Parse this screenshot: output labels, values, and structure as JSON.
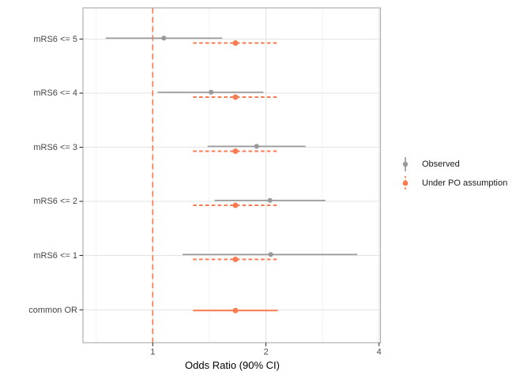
{
  "theme": {
    "background": "#FFFFFF",
    "grid_major": "#E3E3E3",
    "grid_minor": "#F0F0F0",
    "panel_border": "#A8A8A8",
    "tick_mark": "#333333",
    "tick_label_color": "#4D4D4D",
    "axis_title_color": "#000000",
    "legend_text_color": "#1A1A1A"
  },
  "chart_data": {
    "type": "forest-pointrange",
    "title": "",
    "xlabel": "Odds Ratio (90% CI)",
    "ylabel": "",
    "x_scale": "log2",
    "xlim": [
      0.65,
      4.05
    ],
    "x_ticks": [
      1,
      2,
      4
    ],
    "x_tick_labels": [
      "1",
      "2",
      "4"
    ],
    "x_minor_ticks": [
      0.7071,
      1.4142,
      2.8284
    ],
    "grid": true,
    "ci_level": "90%",
    "categories": [
      "mRS6 <= 5",
      "mRS6 <= 4",
      "mRS6 <= 3",
      "mRS6 <= 2",
      "mRS6 <= 1",
      "common OR"
    ],
    "reference_line": {
      "x": 1.0,
      "color": "#F87B51",
      "style": "dashed"
    },
    "series": [
      {
        "name": "Observed",
        "color": "#999999",
        "line_style": "solid",
        "values": [
          {
            "category": "mRS6 <= 5",
            "or": 1.07,
            "ci_low": 0.75,
            "ci_high": 1.53,
            "line": "solid"
          },
          {
            "category": "mRS6 <= 4",
            "or": 1.43,
            "ci_low": 1.03,
            "ci_high": 1.97,
            "line": "solid"
          },
          {
            "category": "mRS6 <= 3",
            "or": 1.89,
            "ci_low": 1.4,
            "ci_high": 2.55,
            "line": "solid"
          },
          {
            "category": "mRS6 <= 2",
            "or": 2.05,
            "ci_low": 1.46,
            "ci_high": 2.88,
            "line": "solid"
          },
          {
            "category": "mRS6 <= 1",
            "or": 2.06,
            "ci_low": 1.2,
            "ci_high": 3.5,
            "line": "solid"
          }
        ]
      },
      {
        "name": "Under PO assumption",
        "color": "#F87B51",
        "line_style": "dashed",
        "values": [
          {
            "category": "mRS6 <= 5",
            "or": 1.66,
            "ci_low": 1.28,
            "ci_high": 2.15,
            "line": "dashed"
          },
          {
            "category": "mRS6 <= 4",
            "or": 1.66,
            "ci_low": 1.28,
            "ci_high": 2.15,
            "line": "dashed"
          },
          {
            "category": "mRS6 <= 3",
            "or": 1.66,
            "ci_low": 1.28,
            "ci_high": 2.15,
            "line": "dashed"
          },
          {
            "category": "mRS6 <= 2",
            "or": 1.66,
            "ci_low": 1.28,
            "ci_high": 2.15,
            "line": "dashed"
          },
          {
            "category": "mRS6 <= 1",
            "or": 1.66,
            "ci_low": 1.28,
            "ci_high": 2.15,
            "line": "dashed"
          },
          {
            "category": "common OR",
            "or": 1.66,
            "ci_low": 1.28,
            "ci_high": 2.15,
            "line": "solid"
          }
        ]
      }
    ],
    "legend": {
      "position": "right",
      "items": [
        "Observed",
        "Under PO assumption"
      ]
    }
  }
}
